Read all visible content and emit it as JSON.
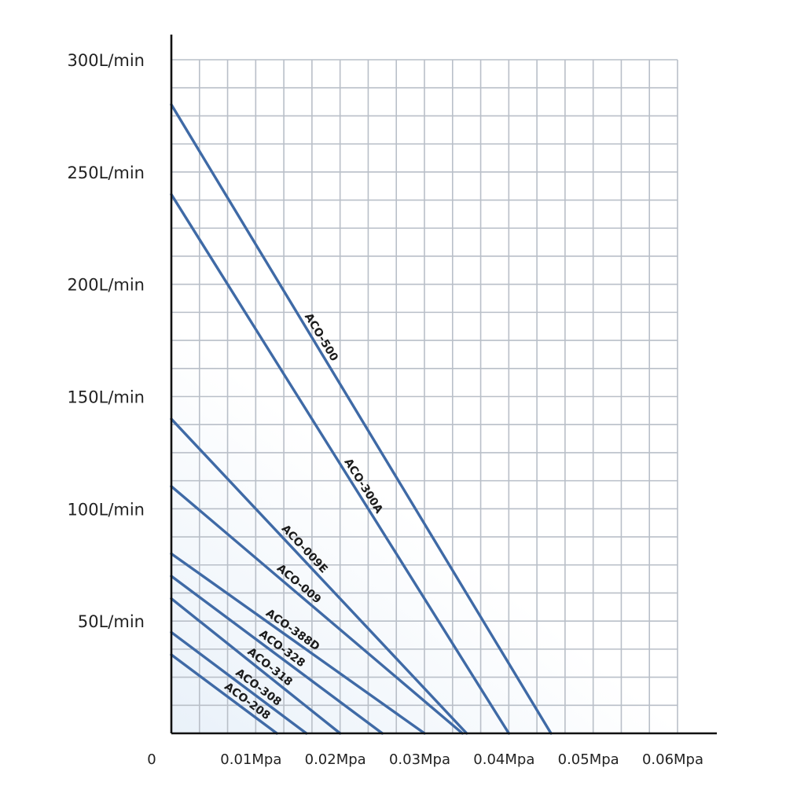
{
  "chart_data": {
    "type": "line",
    "title": "",
    "xlabel": "",
    "ylabel": "",
    "xlim": [
      0,
      0.06
    ],
    "ylim": [
      0,
      300
    ],
    "grid": true,
    "legend": "none",
    "origin_label": "0",
    "x_ticks": [
      {
        "value": 0.01,
        "label": "0.01Mpa"
      },
      {
        "value": 0.02,
        "label": "0.02Mpa"
      },
      {
        "value": 0.03,
        "label": "0.03Mpa"
      },
      {
        "value": 0.04,
        "label": "0.04Mpa"
      },
      {
        "value": 0.05,
        "label": "0.05Mpa"
      },
      {
        "value": 0.06,
        "label": "0.06Mpa"
      }
    ],
    "y_ticks": [
      {
        "value": 50,
        "label": "50L/min"
      },
      {
        "value": 100,
        "label": "100L/min"
      },
      {
        "value": 150,
        "label": "150L/min"
      },
      {
        "value": 200,
        "label": "200L/min"
      },
      {
        "value": 250,
        "label": "250L/min"
      },
      {
        "value": 300,
        "label": "300L/min"
      }
    ],
    "line_color": "#3f6aa6",
    "series": [
      {
        "name": "ACO-500",
        "x": [
          0,
          0.045
        ],
        "y": [
          280,
          0
        ]
      },
      {
        "name": "ACO-300A",
        "x": [
          0,
          0.04
        ],
        "y": [
          240,
          0
        ]
      },
      {
        "name": "ACO-009E",
        "x": [
          0,
          0.035
        ],
        "y": [
          140,
          0
        ]
      },
      {
        "name": "ACO-009",
        "x": [
          0,
          0.0345
        ],
        "y": [
          110,
          0
        ]
      },
      {
        "name": "ACO-388D",
        "x": [
          0,
          0.03
        ],
        "y": [
          80,
          0
        ]
      },
      {
        "name": "ACO-328",
        "x": [
          0,
          0.025
        ],
        "y": [
          70,
          0
        ]
      },
      {
        "name": "ACO-318",
        "x": [
          0,
          0.02
        ],
        "y": [
          60,
          0
        ]
      },
      {
        "name": "ACO-308",
        "x": [
          0,
          0.016
        ],
        "y": [
          45,
          0
        ]
      },
      {
        "name": "ACO-208",
        "x": [
          0,
          0.0125
        ],
        "y": [
          35,
          0
        ]
      }
    ]
  }
}
